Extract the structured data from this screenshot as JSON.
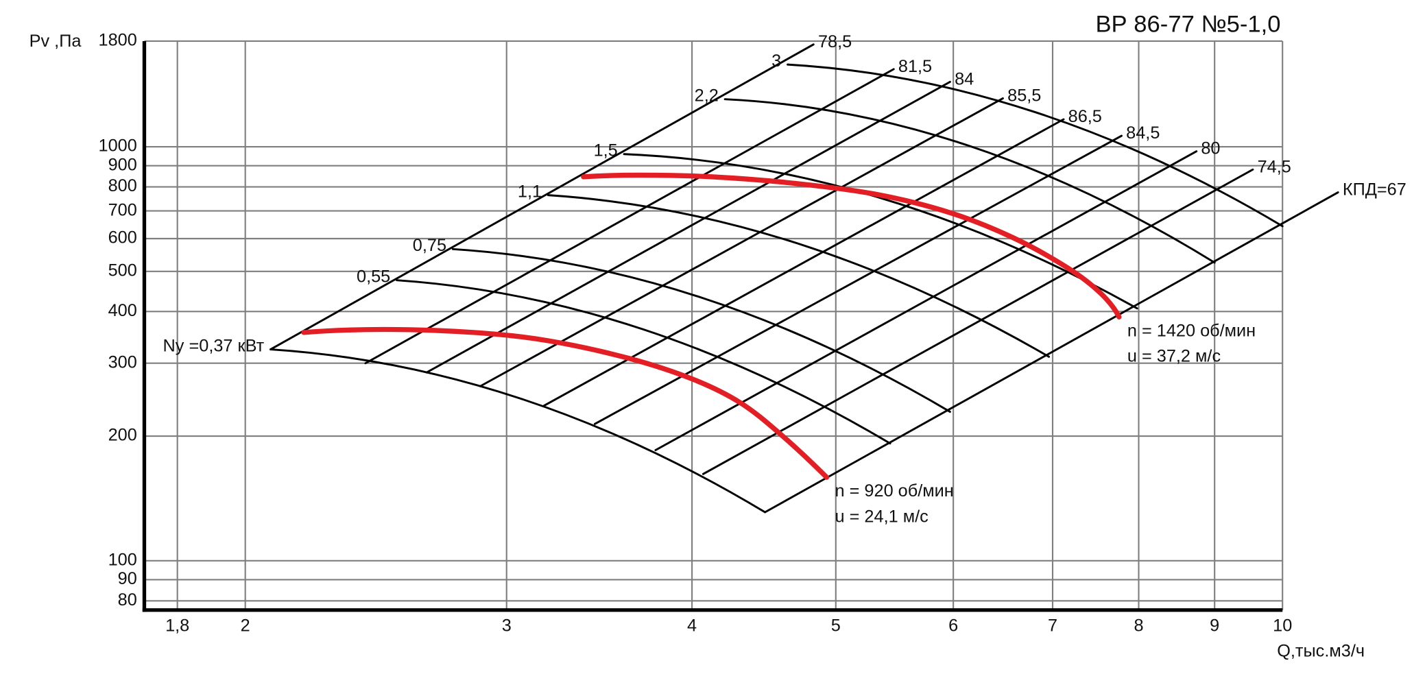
{
  "chart_data": {
    "type": "line",
    "title": "ВР 86-77 №5-1,0",
    "xlabel": "Q,тыс.м3/ч",
    "ylabel": "Pv ,Па",
    "xscale": "log",
    "yscale": "log",
    "xlim": [
      1.71,
      10
    ],
    "ylim": [
      76,
      1800
    ],
    "xticks": [
      {
        "value": 1.8,
        "label": "1,8"
      },
      2,
      3,
      4,
      5,
      6,
      7,
      8,
      9,
      10
    ],
    "yticks": [
      80,
      90,
      100,
      200,
      300,
      400,
      500,
      600,
      700,
      800,
      900,
      1000,
      1800
    ],
    "grid": true,
    "grid_color": "#7f7f7f",
    "mesh_color": "#000000",
    "series": [
      {
        "color": "#e31e24",
        "annotation": [
          "n = 920 об/мин",
          "u = 24,1 м/с"
        ],
        "x": [
          2.19,
          2.48,
          2.85,
          3.2,
          3.63,
          4.01,
          4.31,
          4.59,
          4.93
        ],
        "y": [
          356,
          362,
          356,
          340,
          308,
          274,
          241,
          202,
          159
        ]
      },
      {
        "color": "#e31e24",
        "annotation": [
          "n = 1420 об/мин",
          "u = 37,2 м/с"
        ],
        "x": [
          3.38,
          3.69,
          4.13,
          4.69,
          5.33,
          5.97,
          6.59,
          7.17,
          7.54,
          7.76
        ],
        "y": [
          846,
          854,
          846,
          816,
          767,
          693,
          602,
          509,
          443,
          388
        ]
      }
    ],
    "power_curves": [
      {
        "label": "Ny =0,37 кВт",
        "x": [
          2.08,
          3.06,
          4.48
        ],
        "y": [
          324,
          247,
          131
        ]
      },
      {
        "label": "0,55",
        "x": [
          2.53,
          3.71,
          5.44
        ],
        "y": [
          476,
          362,
          192
        ]
      },
      {
        "label": "0,75",
        "x": [
          2.76,
          4.06,
          5.97
        ],
        "y": [
          566,
          432,
          229
        ]
      },
      {
        "label": "1,1",
        "x": [
          3.2,
          4.72,
          6.96
        ],
        "y": [
          764,
          583,
          311
        ]
      },
      {
        "label": "1,5",
        "x": [
          3.6,
          5.36,
          7.98
        ],
        "y": [
          960,
          752,
          407
        ]
      },
      {
        "label": "2,2",
        "x": [
          4.21,
          6.15,
          9.0
        ],
        "y": [
          1303,
          1005,
          525
        ]
      },
      {
        "label": "3",
        "x": [
          4.64,
          6.81,
          10.0
        ],
        "y": [
          1580,
          1213,
          643
        ]
      }
    ],
    "efficiency_lines": [
      {
        "label": "78,5",
        "x": [
          2.08,
          4.83
        ],
        "y": [
          324,
          1767
        ]
      },
      {
        "label": "81,5",
        "x": [
          2.41,
          5.47
        ],
        "y": [
          300,
          1540
        ]
      },
      {
        "label": "84",
        "x": [
          2.65,
          5.97
        ],
        "y": [
          285,
          1435
        ]
      },
      {
        "label": "85,5",
        "x": [
          2.88,
          6.48
        ],
        "y": [
          264,
          1309
        ]
      },
      {
        "label": "86,5",
        "x": [
          3.18,
          7.12
        ],
        "y": [
          237,
          1165
        ]
      },
      {
        "label": "84,5",
        "x": [
          3.44,
          7.79
        ],
        "y": [
          214,
          1063
        ]
      },
      {
        "label": "80",
        "x": [
          3.78,
          8.75
        ],
        "y": [
          185,
          975
        ]
      },
      {
        "label": "74,5",
        "x": [
          4.07,
          9.55
        ],
        "y": [
          162,
          881
        ]
      },
      {
        "label": "КПД=67",
        "x": [
          4.48,
          10.9
        ],
        "y": [
          131,
          776
        ]
      }
    ]
  }
}
